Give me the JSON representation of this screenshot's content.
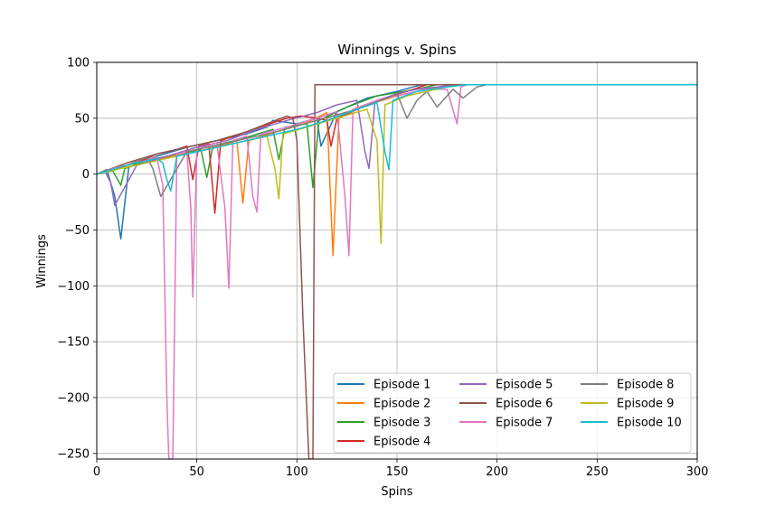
{
  "chart_data": {
    "type": "line",
    "title": "Winnings v. Spins",
    "xlabel": "Spins",
    "ylabel": "Winnings",
    "xlim": [
      0,
      300
    ],
    "ylim": [
      -255,
      100
    ],
    "xticks": [
      0,
      50,
      100,
      150,
      200,
      250,
      300
    ],
    "yticks": [
      -250,
      -200,
      -150,
      -100,
      -50,
      0,
      50,
      100
    ],
    "ytick_labels": [
      "−250",
      "−200",
      "−150",
      "−100",
      "−50",
      "0",
      "50",
      "100"
    ],
    "grid": true,
    "legend_position": "lower right",
    "legend_columns": 3,
    "series": [
      {
        "name": "Episode 1",
        "color": "#1f77b4",
        "x": [
          0,
          5,
          9,
          12,
          16,
          30,
          45,
          60,
          75,
          85,
          88,
          100,
          110,
          112,
          120,
          135,
          150,
          158,
          163,
          180,
          200,
          300
        ],
        "y": [
          0,
          4,
          -20,
          -58,
          6,
          16,
          24,
          30,
          36,
          42,
          48,
          45,
          50,
          25,
          56,
          68,
          74,
          78,
          80,
          80,
          80,
          80
        ]
      },
      {
        "name": "Episode 2",
        "color": "#ff7f0e",
        "x": [
          0,
          10,
          20,
          35,
          50,
          65,
          70,
          73,
          76,
          90,
          105,
          115,
          118,
          121,
          135,
          150,
          165,
          175,
          180,
          200,
          300
        ],
        "y": [
          0,
          5,
          8,
          15,
          20,
          27,
          30,
          -26,
          30,
          38,
          46,
          55,
          -73,
          50,
          62,
          70,
          76,
          79,
          80,
          80,
          80
        ]
      },
      {
        "name": "Episode 3",
        "color": "#2ca02c",
        "x": [
          0,
          8,
          12,
          14,
          25,
          40,
          52,
          55,
          58,
          75,
          88,
          91,
          94,
          105,
          108,
          111,
          125,
          140,
          160,
          170,
          190,
          300
        ],
        "y": [
          0,
          3,
          -10,
          5,
          12,
          18,
          22,
          -3,
          25,
          33,
          40,
          13,
          42,
          45,
          -12,
          48,
          60,
          70,
          76,
          80,
          80,
          80
        ]
      },
      {
        "name": "Episode 4",
        "color": "#d62728",
        "x": [
          0,
          10,
          20,
          30,
          40,
          45,
          48,
          51,
          56,
          59,
          62,
          75,
          88,
          95,
          102,
          110,
          115,
          117,
          120,
          140,
          155,
          165,
          300
        ],
        "y": [
          0,
          6,
          10,
          18,
          22,
          25,
          -5,
          25,
          27,
          -35,
          30,
          38,
          46,
          50,
          52,
          50,
          48,
          25,
          50,
          66,
          74,
          80,
          80
        ]
      },
      {
        "name": "Episode 5",
        "color": "#9467bd",
        "x": [
          0,
          4,
          7,
          9,
          20,
          35,
          50,
          65,
          80,
          95,
          110,
          120,
          130,
          134,
          136,
          139,
          150,
          160,
          170,
          180,
          300
        ],
        "y": [
          0,
          3,
          -8,
          -28,
          8,
          16,
          24,
          30,
          40,
          48,
          55,
          62,
          66,
          20,
          5,
          65,
          72,
          76,
          78,
          80,
          80
        ]
      },
      {
        "name": "Episode 6",
        "color": "#8c564b",
        "x": [
          0,
          15,
          30,
          45,
          60,
          75,
          85,
          95,
          98,
          100,
          103,
          106,
          108,
          109,
          200,
          300
        ],
        "y": [
          0,
          10,
          18,
          24,
          30,
          38,
          45,
          52,
          50,
          30,
          -130,
          -255,
          -255,
          80,
          80,
          80
        ]
      },
      {
        "name": "Episode 7",
        "color": "#e377c2",
        "x": [
          0,
          10,
          20,
          30,
          33,
          35,
          36,
          38,
          40,
          45,
          47,
          48,
          50,
          60,
          64,
          66,
          68,
          75,
          78,
          80,
          82,
          95,
          110,
          120,
          124,
          126,
          128,
          140,
          155,
          165,
          175,
          180,
          182,
          185,
          195,
          300
        ],
        "y": [
          0,
          6,
          10,
          15,
          -10,
          -200,
          -255,
          -255,
          18,
          20,
          -30,
          -110,
          22,
          28,
          -30,
          -102,
          30,
          34,
          -20,
          -34,
          36,
          42,
          50,
          56,
          -20,
          -73,
          58,
          66,
          72,
          76,
          76,
          45,
          78,
          80,
          80,
          80
        ]
      },
      {
        "name": "Episode 8",
        "color": "#7f7f7f",
        "x": [
          0,
          15,
          25,
          28,
          32,
          45,
          60,
          75,
          90,
          110,
          130,
          145,
          150,
          155,
          160,
          165,
          170,
          178,
          183,
          190,
          195,
          300
        ],
        "y": [
          0,
          8,
          15,
          5,
          -20,
          20,
          26,
          32,
          38,
          48,
          58,
          68,
          72,
          50,
          66,
          74,
          60,
          76,
          68,
          78,
          80,
          80
        ]
      },
      {
        "name": "Episode 9",
        "color": "#bcbd22",
        "x": [
          0,
          12,
          25,
          40,
          55,
          70,
          85,
          89,
          91,
          93,
          105,
          120,
          135,
          140,
          142,
          144,
          155,
          165,
          175,
          185,
          300
        ],
        "y": [
          0,
          5,
          10,
          16,
          22,
          28,
          34,
          5,
          -22,
          36,
          42,
          50,
          58,
          30,
          -62,
          62,
          70,
          74,
          78,
          80,
          80
        ]
      },
      {
        "name": "Episode 10",
        "color": "#17becf",
        "x": [
          0,
          15,
          30,
          33,
          35,
          37,
          40,
          55,
          70,
          85,
          100,
          115,
          130,
          140,
          144,
          146,
          148,
          160,
          175,
          185,
          190,
          300
        ],
        "y": [
          0,
          8,
          14,
          10,
          -5,
          -15,
          16,
          22,
          28,
          34,
          40,
          48,
          58,
          64,
          20,
          4,
          66,
          74,
          78,
          80,
          80,
          80
        ]
      }
    ]
  }
}
